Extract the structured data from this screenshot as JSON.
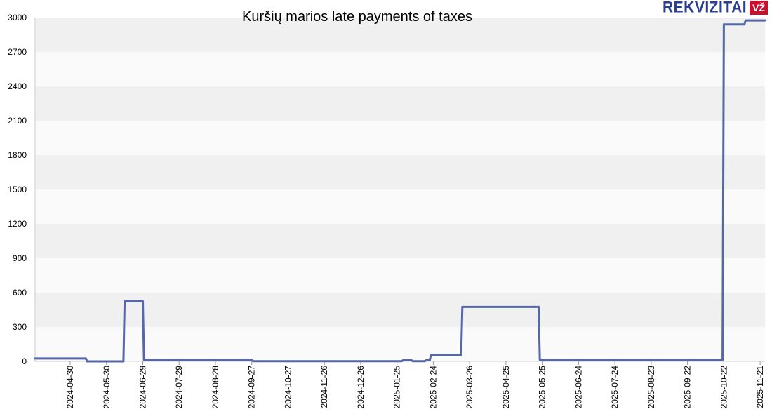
{
  "brand": {
    "name": "REKVIZITAI",
    "badge": "VŽ"
  },
  "chart_data": {
    "type": "line",
    "title": "Kuršių marios late payments of taxes",
    "xlabel": "",
    "ylabel": "",
    "ylim": [
      0,
      3000
    ],
    "xlim": [
      "2024-04-01",
      "2025-11-25"
    ],
    "y_ticks": [
      0,
      300,
      600,
      900,
      1200,
      1500,
      1800,
      2100,
      2400,
      2700,
      3000
    ],
    "x_ticks": [
      "2024-04-30",
      "2024-05-30",
      "2024-06-29",
      "2024-07-29",
      "2024-08-28",
      "2024-09-27",
      "2024-10-27",
      "2024-11-26",
      "2024-12-26",
      "2025-01-25",
      "2025-02-24",
      "2025-03-26",
      "2025-04-25",
      "2025-05-25",
      "2025-06-24",
      "2025-07-24",
      "2025-08-23",
      "2025-09-22",
      "2025-10-22",
      "2025-11-21"
    ],
    "grid": "horizontal bands",
    "colors": {
      "line": "#5567a9",
      "band_dark": "#f0f0f0",
      "band_light": "#fafafa",
      "axis": "#cccccc"
    },
    "series": [
      {
        "points": [
          [
            "2024-04-01",
            25
          ],
          [
            "2024-05-13",
            25
          ],
          [
            "2024-05-14",
            0
          ],
          [
            "2024-06-13",
            0
          ],
          [
            "2024-06-14",
            525
          ],
          [
            "2024-06-29",
            525
          ],
          [
            "2024-06-30",
            12
          ],
          [
            "2024-09-27",
            12
          ],
          [
            "2024-09-28",
            2
          ],
          [
            "2025-01-29",
            2
          ],
          [
            "2025-01-30",
            10
          ],
          [
            "2025-02-06",
            10
          ],
          [
            "2025-02-07",
            2
          ],
          [
            "2025-02-17",
            2
          ],
          [
            "2025-02-18",
            10
          ],
          [
            "2025-02-21",
            10
          ],
          [
            "2025-02-22",
            55
          ],
          [
            "2025-03-19",
            55
          ],
          [
            "2025-03-20",
            475
          ],
          [
            "2025-05-22",
            475
          ],
          [
            "2025-05-23",
            12
          ],
          [
            "2025-10-21",
            12
          ],
          [
            "2025-10-22",
            2940
          ],
          [
            "2025-11-08",
            2940
          ],
          [
            "2025-11-09",
            2975
          ],
          [
            "2025-11-25",
            2975
          ]
        ]
      }
    ]
  }
}
